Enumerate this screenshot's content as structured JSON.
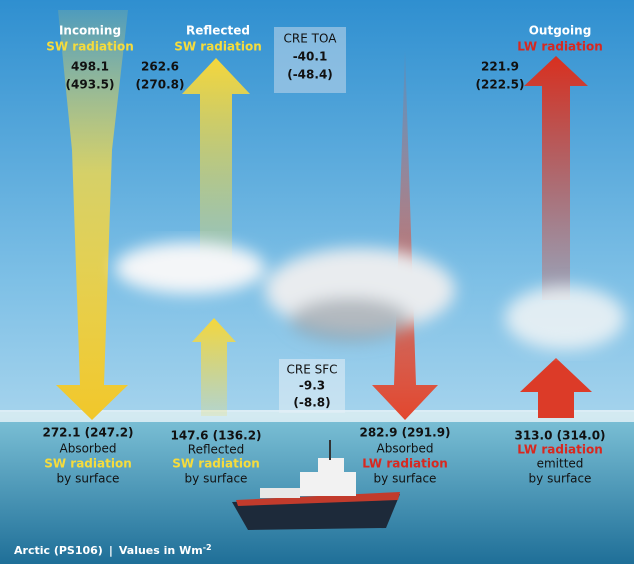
{
  "top_labels": [
    {
      "title": "Incoming",
      "subtitle": "SW radiation",
      "value": "498.1",
      "alt_value": "(493.5)"
    },
    {
      "title": "Reflected",
      "subtitle": "SW radiation",
      "value": "262.6",
      "alt_value": "(270.8)"
    },
    {
      "title": "Outgoing",
      "subtitle": "LW radiation",
      "value": "221.9",
      "alt_value": "(222.5)"
    }
  ],
  "cre_toa": {
    "title": "CRE TOA",
    "value": "-40.1",
    "alt_value": "(-48.4)"
  },
  "cre_sfc": {
    "title": "CRE SFC",
    "value": "-9.3",
    "alt_value": "(-8.8)"
  },
  "surface_labels": [
    {
      "value": "272.1 (247.2)",
      "lines": [
        "Absorbed",
        "SW radiation",
        "by surface"
      ]
    },
    {
      "value": "147.6 (136.2)",
      "lines": [
        "Reflected",
        "SW radiation",
        "by surface"
      ]
    },
    {
      "value": "282.9 (291.9)",
      "lines": [
        "Absorbed",
        "LW radiation",
        "by surface"
      ]
    },
    {
      "value": "313.0 (314.0)",
      "lines": [
        "LW radiation",
        "emitted",
        "by surface"
      ]
    }
  ],
  "footer": {
    "site": "Arctic (PS106)",
    "separator": "|",
    "units": "Values in Wm",
    "units_exponent": "-2"
  }
}
